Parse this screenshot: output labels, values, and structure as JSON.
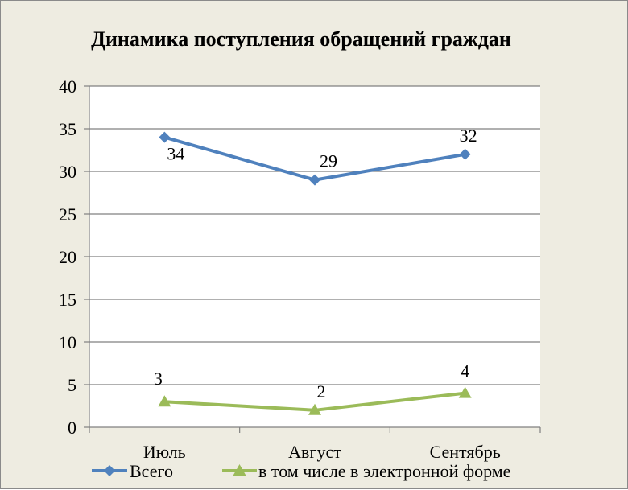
{
  "chart_data": {
    "type": "line",
    "title": "Динамика поступления обращений граждан",
    "categories": [
      "Июль",
      "Август",
      "Сентябрь"
    ],
    "ylim": [
      0,
      40
    ],
    "yticks": [
      0,
      5,
      10,
      15,
      20,
      25,
      30,
      35,
      40
    ],
    "grid": true,
    "legend_position": "bottom",
    "series": [
      {
        "name": "Всего",
        "values": [
          34,
          29,
          32
        ],
        "color": "#4f81bd",
        "marker": "diamond"
      },
      {
        "name": "в том числе в электронной форме",
        "values": [
          3,
          2,
          4
        ],
        "color": "#9bbb59",
        "marker": "triangle"
      }
    ]
  }
}
